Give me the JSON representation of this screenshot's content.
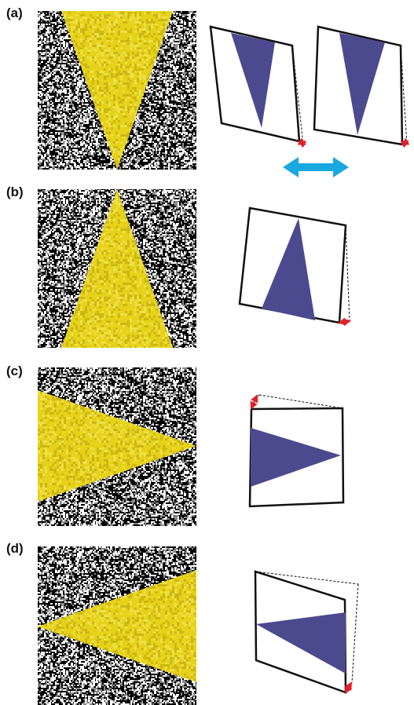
{
  "panels": [
    {
      "label": "(a)"
    },
    {
      "label": "(b)"
    },
    {
      "label": "(c)"
    },
    {
      "label": "(d)"
    }
  ],
  "colors": {
    "wedge_fill": "#e6d21a",
    "wedge_light": "#f6e86a",
    "wedge_dark": "#b8a10a",
    "noise_black": "#000000",
    "noise_white": "#ffffff",
    "noise_gray": "#8a8a8a",
    "triangle_fill": "#4c4a8e",
    "frame_stroke": "#111111",
    "shear_arrow": "#e0202a",
    "double_arrow": "#1aa8e0"
  }
}
